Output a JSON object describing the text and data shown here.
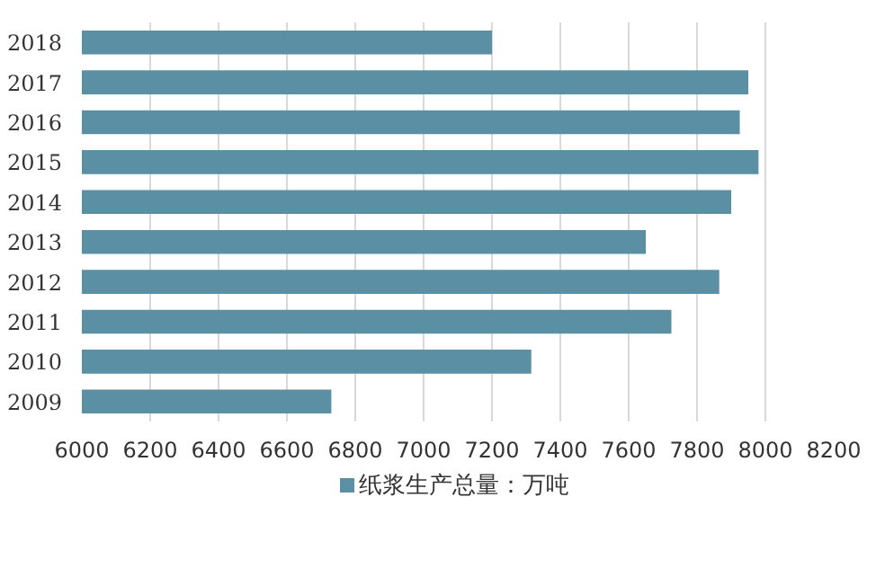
{
  "chart_data": {
    "type": "bar",
    "orientation": "horizontal",
    "categories": [
      "2018",
      "2017",
      "2016",
      "2015",
      "2014",
      "2013",
      "2012",
      "2011",
      "2010",
      "2009"
    ],
    "series": [
      {
        "name": "纸浆生产总量：万吨",
        "color": "#5b8fa4",
        "values": [
          7200,
          7950,
          7925,
          7980,
          7900,
          7650,
          7865,
          7725,
          7315,
          6730
        ]
      }
    ],
    "xlim": [
      6000,
      8200
    ],
    "xticks": [
      6000,
      6200,
      6400,
      6600,
      6800,
      7000,
      7200,
      7400,
      7600,
      7800,
      8000,
      8200
    ],
    "grid": "x",
    "legend": "bottom"
  }
}
